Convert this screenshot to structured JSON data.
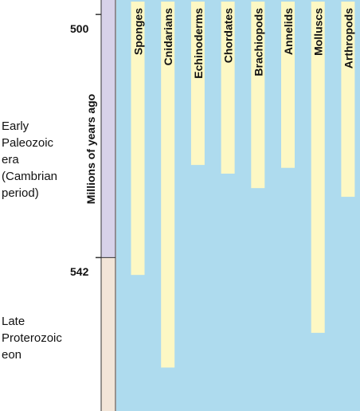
{
  "axis": {
    "title": "Millions of years ago",
    "ticks": [
      {
        "label": "500",
        "value": 500
      },
      {
        "label": "542",
        "value": 542
      }
    ]
  },
  "eras": [
    {
      "label": "Early\nPaleozoic\nera\n(Cambrian\nperiod)",
      "color": "#d7d2e9"
    },
    {
      "label": "Late\nProterozoic\neon",
      "color": "#f2e5d8"
    }
  ],
  "chart_data": {
    "type": "bar",
    "orientation": "vertical-ranges",
    "title": "",
    "xlabel": "",
    "ylabel": "Millions of years ago",
    "ylim": [
      497.5,
      565
    ],
    "y_reversed": true,
    "era_boundary": 542,
    "categories": [
      "Sponges",
      "Cnidarians",
      "Echinoderms",
      "Chordates",
      "Brachiopods",
      "Annelids",
      "Molluscs",
      "Arthropods"
    ],
    "origin_mya": [
      545,
      561,
      526,
      527.5,
      530,
      526.5,
      555,
      531.5
    ],
    "end_mya": 497.5
  },
  "colors": {
    "panel": "#aedbee",
    "bar": "#fdf8c4",
    "axis": "#333333"
  }
}
